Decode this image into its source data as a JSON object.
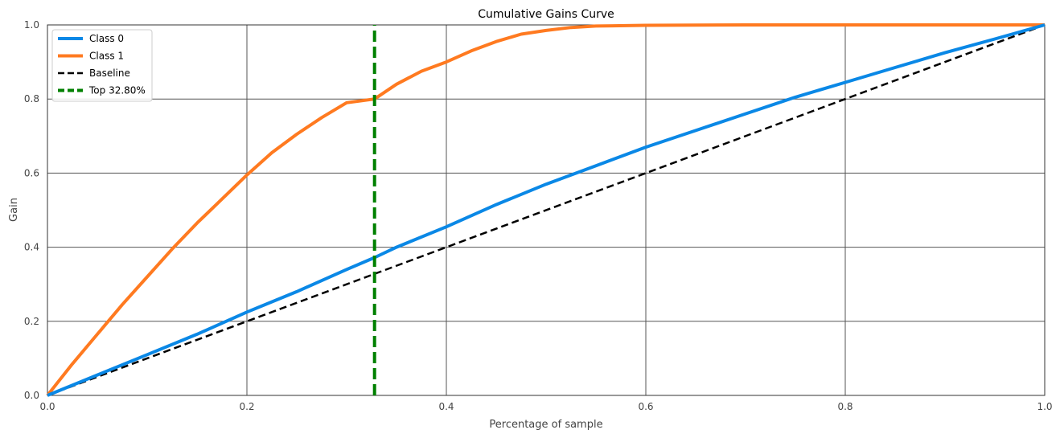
{
  "chart_data": {
    "type": "line",
    "title": "Cumulative Gains Curve",
    "xlabel": "Percentage of sample",
    "ylabel": "Gain",
    "xlim": [
      0.0,
      1.0
    ],
    "ylim": [
      0.0,
      1.0
    ],
    "x_ticks": [
      "0.0",
      "0.2",
      "0.4",
      "0.6",
      "0.8",
      "1.0"
    ],
    "y_ticks": [
      "0.0",
      "0.2",
      "0.4",
      "0.6",
      "0.8",
      "1.0"
    ],
    "grid": true,
    "legend_position": "top-left",
    "series": [
      {
        "name": "Class 0",
        "color": "#0a88e6",
        "style": "solid",
        "x": [
          0.0,
          0.05,
          0.1,
          0.15,
          0.2,
          0.25,
          0.3,
          0.328,
          0.35,
          0.4,
          0.45,
          0.5,
          0.55,
          0.6,
          0.65,
          0.7,
          0.75,
          0.8,
          0.85,
          0.9,
          0.95,
          1.0
        ],
        "y": [
          0.0,
          0.055,
          0.11,
          0.165,
          0.225,
          0.28,
          0.34,
          0.372,
          0.4,
          0.455,
          0.515,
          0.57,
          0.62,
          0.67,
          0.715,
          0.76,
          0.805,
          0.845,
          0.885,
          0.925,
          0.962,
          1.0
        ]
      },
      {
        "name": "Class 1",
        "color": "#ff7a20",
        "style": "solid",
        "x": [
          0.0,
          0.025,
          0.05,
          0.075,
          0.1,
          0.125,
          0.15,
          0.175,
          0.2,
          0.225,
          0.25,
          0.275,
          0.3,
          0.328,
          0.35,
          0.375,
          0.4,
          0.425,
          0.45,
          0.475,
          0.5,
          0.525,
          0.55,
          0.6,
          0.7,
          0.8,
          0.9,
          1.0
        ],
        "y": [
          0.0,
          0.085,
          0.165,
          0.245,
          0.32,
          0.395,
          0.465,
          0.53,
          0.595,
          0.655,
          0.705,
          0.75,
          0.79,
          0.8,
          0.84,
          0.875,
          0.9,
          0.93,
          0.955,
          0.975,
          0.985,
          0.993,
          0.997,
          0.999,
          1.0,
          1.0,
          1.0,
          1.0
        ]
      },
      {
        "name": "Baseline",
        "color": "#000000",
        "style": "dashed",
        "x": [
          0.0,
          1.0
        ],
        "y": [
          0.0,
          1.0
        ]
      },
      {
        "name": "Top 32.80%",
        "color": "#008000",
        "style": "dashed",
        "x": [
          0.328,
          0.328
        ],
        "y": [
          0.0,
          1.0
        ]
      }
    ]
  }
}
